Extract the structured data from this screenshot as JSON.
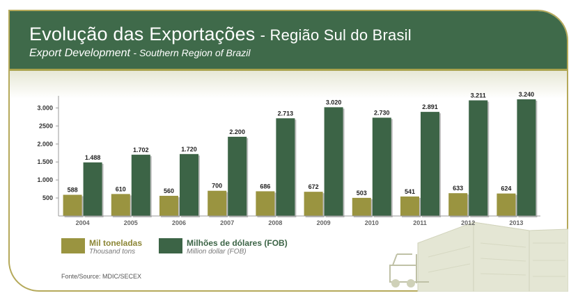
{
  "header": {
    "title_pt_main": "Evolução das Exportações",
    "title_pt_rest": "- Região Sul do Brasil",
    "title_en_main": "Export Development",
    "title_en_rest": "- Southern Region of Brazil"
  },
  "colors": {
    "header_bg": "#3f6a4a",
    "tons_bar": "#9a9440",
    "fob_bar": "#3c6446",
    "border": "#b5a95a"
  },
  "chart_data": {
    "type": "bar",
    "categories": [
      "2004",
      "2005",
      "2006",
      "2007",
      "2008",
      "2009",
      "2010",
      "2011",
      "2012",
      "2013"
    ],
    "series": [
      {
        "name": "Mil toneladas",
        "values": [
          588,
          610,
          560,
          700,
          686,
          672,
          503,
          541,
          633,
          624
        ],
        "labels": [
          "588",
          "610",
          "560",
          "700",
          "686",
          "672",
          "503",
          "541",
          "633",
          "624"
        ]
      },
      {
        "name": "Milhões de dólares (FOB)",
        "values": [
          1488,
          1702,
          1720,
          2200,
          2713,
          3020,
          2730,
          2891,
          3211,
          3240
        ],
        "labels": [
          "1.488",
          "1.702",
          "1.720",
          "2.200",
          "2.713",
          "3.020",
          "2.730",
          "2.891",
          "3.211",
          "3.240"
        ]
      }
    ],
    "yticks": [
      500,
      1000,
      1500,
      2000,
      2500,
      3000
    ],
    "ytick_labels": [
      "500",
      "1.000",
      "1.500",
      "2.000",
      "2500",
      "3.000"
    ],
    "ylim": [
      0,
      3400
    ],
    "grid": false,
    "legend_position": "bottom-left"
  },
  "legend": {
    "tons_label": "Mil toneladas",
    "tons_sub": "Thousand tons",
    "fob_label": "Milhões de dólares (FOB)",
    "fob_sub": "Million dollar (FOB)"
  },
  "source": "Fonte/Source: MDIC/SECEX",
  "icons": [
    "forklift-warehouse-illustration"
  ]
}
